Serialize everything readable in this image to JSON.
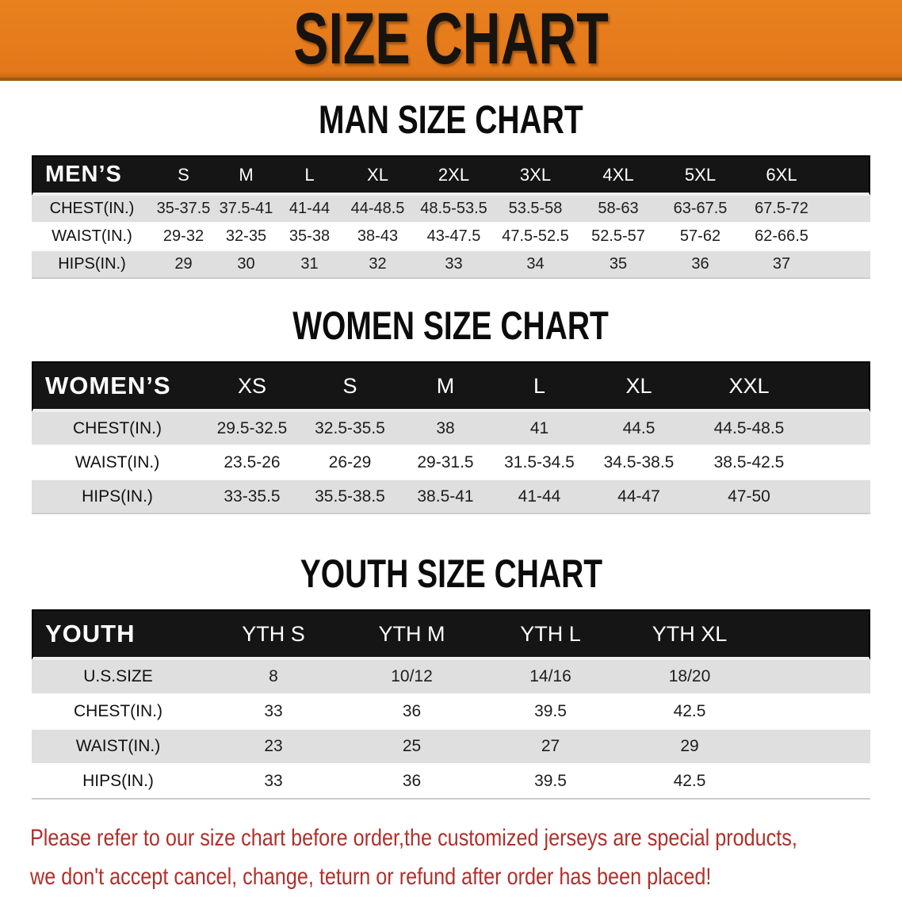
{
  "banner": {
    "title": "SIZE CHART"
  },
  "colors": {
    "banner_bg": "#e8811f",
    "banner_border": "#9c5a12",
    "header_bar": "#151515",
    "row_alt": "#dfdfdf",
    "disclaimer": "#b0302a"
  },
  "sections": [
    {
      "title": "MAN SIZE CHART",
      "header_label": "MEN’S",
      "columns": [
        "S",
        "M",
        "L",
        "XL",
        "2XL",
        "3XL",
        "4XL",
        "5XL",
        "6XL"
      ],
      "rows": [
        {
          "label": "CHEST(IN.)",
          "values": [
            "35-37.5",
            "37.5-41",
            "41-44",
            "44-48.5",
            "48.5-53.5",
            "53.5-58",
            "58-63",
            "63-67.5",
            "67.5-72"
          ]
        },
        {
          "label": "WAIST(IN.)",
          "values": [
            "29-32",
            "32-35",
            "35-38",
            "38-43",
            "43-47.5",
            "47.5-52.5",
            "52.5-57",
            "57-62",
            "62-66.5"
          ]
        },
        {
          "label": "HIPS(IN.)",
          "values": [
            "29",
            "30",
            "31",
            "32",
            "33",
            "34",
            "35",
            "36",
            "37"
          ]
        }
      ]
    },
    {
      "title": "WOMEN SIZE CHART",
      "header_label": "WOMEN’S",
      "columns": [
        "XS",
        "S",
        "M",
        "L",
        "XL",
        "XXL"
      ],
      "rows": [
        {
          "label": "CHEST(IN.)",
          "values": [
            "29.5-32.5",
            "32.5-35.5",
            "38",
            "41",
            "44.5",
            "44.5-48.5"
          ]
        },
        {
          "label": "WAIST(IN.)",
          "values": [
            "23.5-26",
            "26-29",
            "29-31.5",
            "31.5-34.5",
            "34.5-38.5",
            "38.5-42.5"
          ]
        },
        {
          "label": "HIPS(IN.)",
          "values": [
            "33-35.5",
            "35.5-38.5",
            "38.5-41",
            "41-44",
            "44-47",
            "47-50"
          ]
        }
      ]
    },
    {
      "title": "YOUTH SIZE CHART",
      "header_label": "YOUTH",
      "columns": [
        "YTH S",
        "YTH M",
        "YTH L",
        "YTH XL"
      ],
      "rows": [
        {
          "label": "U.S.SIZE",
          "values": [
            "8",
            "10/12",
            "14/16",
            "18/20"
          ]
        },
        {
          "label": "CHEST(IN.)",
          "values": [
            "33",
            "36",
            "39.5",
            "42.5"
          ]
        },
        {
          "label": "WAIST(IN.)",
          "values": [
            "23",
            "25",
            "27",
            "29"
          ]
        },
        {
          "label": "HIPS(IN.)",
          "values": [
            "33",
            "36",
            "39.5",
            "42.5"
          ]
        }
      ]
    }
  ],
  "disclaimer": {
    "line1": "Please refer to our size chart before order,the customized jerseys are special products,",
    "line2": "we don't accept cancel, change, teturn or refund after order has been placed!"
  }
}
